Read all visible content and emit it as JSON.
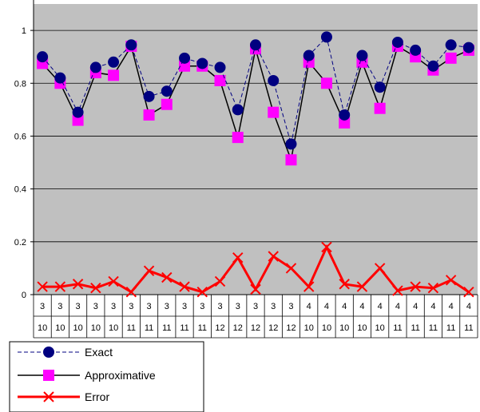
{
  "chart_data": {
    "type": "line",
    "title": "",
    "xlabel": "",
    "ylabel": "",
    "ylim": [
      0,
      1.1
    ],
    "yticks": [
      0,
      0.2,
      0.4,
      0.6,
      0.8,
      1
    ],
    "grid": true,
    "legend_position": "bottom-left",
    "categories": [
      [
        "3",
        "10"
      ],
      [
        "3",
        "10"
      ],
      [
        "3",
        "10"
      ],
      [
        "3",
        "10"
      ],
      [
        "3",
        "10"
      ],
      [
        "3",
        "11"
      ],
      [
        "3",
        "11"
      ],
      [
        "3",
        "11"
      ],
      [
        "3",
        "11"
      ],
      [
        "3",
        "11"
      ],
      [
        "3",
        "12"
      ],
      [
        "3",
        "12"
      ],
      [
        "3",
        "12"
      ],
      [
        "3",
        "12"
      ],
      [
        "3",
        "12"
      ],
      [
        "4",
        "10"
      ],
      [
        "4",
        "10"
      ],
      [
        "4",
        "10"
      ],
      [
        "4",
        "10"
      ],
      [
        "4",
        "10"
      ],
      [
        "4",
        "11"
      ],
      [
        "4",
        "11"
      ],
      [
        "4",
        "11"
      ],
      [
        "4",
        "11"
      ],
      [
        "4",
        "11"
      ]
    ],
    "series": [
      {
        "name": "Exact",
        "color": "#000080",
        "values": [
          0.9,
          0.82,
          0.69,
          0.86,
          0.88,
          0.945,
          0.75,
          0.77,
          0.895,
          0.875,
          0.86,
          0.7,
          0.945,
          0.81,
          0.57,
          0.905,
          0.975,
          0.68,
          0.905,
          0.785,
          0.955,
          0.925,
          0.865,
          0.945,
          0.935
        ]
      },
      {
        "name": "Approximative",
        "color": "#ff00ff",
        "values": [
          0.875,
          0.8,
          0.66,
          0.84,
          0.83,
          0.94,
          0.68,
          0.72,
          0.865,
          0.865,
          0.81,
          0.595,
          0.93,
          0.69,
          0.51,
          0.88,
          0.8,
          0.65,
          0.88,
          0.705,
          0.94,
          0.9,
          0.85,
          0.895,
          0.925
        ]
      },
      {
        "name": "Error",
        "color": "#ff0000",
        "values": [
          0.03,
          0.03,
          0.04,
          0.025,
          0.05,
          0.01,
          0.09,
          0.065,
          0.03,
          0.01,
          0.05,
          0.14,
          0.02,
          0.145,
          0.1,
          0.03,
          0.18,
          0.04,
          0.03,
          0.1,
          0.015,
          0.03,
          0.025,
          0.055,
          0.01
        ]
      }
    ]
  }
}
